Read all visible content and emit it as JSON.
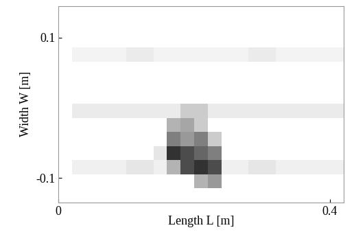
{
  "chart_data": {
    "type": "heatmap",
    "x_label": "Length L [m]",
    "y_label": "Width W [m]",
    "xlim": [
      0,
      0.42
    ],
    "ylim": [
      -0.135,
      0.145
    ],
    "xticks": [
      0,
      0.4
    ],
    "yticks": [
      -0.1,
      0.1
    ],
    "value_range": [
      0,
      1
    ],
    "color": "gray_r",
    "cells": [
      [
        0,
        0,
        0,
        0,
        0,
        0,
        0,
        0,
        0,
        0,
        0,
        0,
        0,
        0,
        0,
        0,
        0,
        0,
        0,
        0,
        0
      ],
      [
        0,
        0,
        0,
        0,
        0,
        0,
        0,
        0,
        0,
        0,
        0,
        0,
        0,
        0,
        0,
        0,
        0,
        0,
        0,
        0,
        0
      ],
      [
        0,
        0,
        0,
        0,
        0,
        0,
        0,
        0,
        0,
        0,
        0,
        0,
        0,
        0,
        0,
        0,
        0,
        0,
        0,
        0,
        0
      ],
      [
        0,
        0.05,
        0.05,
        0.05,
        0.05,
        0.08,
        0.08,
        0.05,
        0.05,
        0.05,
        0.05,
        0.05,
        0.05,
        0.05,
        0.08,
        0.08,
        0.05,
        0.05,
        0.05,
        0.05,
        0.05
      ],
      [
        0,
        0,
        0,
        0,
        0,
        0,
        0,
        0,
        0,
        0,
        0,
        0,
        0,
        0,
        0,
        0,
        0,
        0,
        0,
        0,
        0
      ],
      [
        0,
        0,
        0,
        0,
        0,
        0,
        0,
        0,
        0,
        0,
        0,
        0,
        0,
        0,
        0,
        0,
        0,
        0,
        0,
        0,
        0
      ],
      [
        0,
        0,
        0,
        0,
        0,
        0,
        0,
        0,
        0,
        0,
        0,
        0,
        0,
        0,
        0,
        0,
        0,
        0,
        0,
        0,
        0
      ],
      [
        0,
        0.08,
        0.08,
        0.08,
        0.08,
        0.08,
        0.08,
        0.08,
        0.08,
        0.2,
        0.2,
        0.08,
        0.08,
        0.08,
        0.08,
        0.08,
        0.08,
        0.08,
        0.08,
        0.08,
        0.08
      ],
      [
        0,
        0,
        0,
        0,
        0,
        0,
        0,
        0,
        0.3,
        0.35,
        0.2,
        0,
        0,
        0,
        0,
        0,
        0,
        0,
        0,
        0,
        0
      ],
      [
        0,
        0,
        0,
        0,
        0,
        0,
        0,
        0,
        0.5,
        0.4,
        0.5,
        0.2,
        0,
        0,
        0,
        0,
        0,
        0,
        0,
        0,
        0
      ],
      [
        0,
        0,
        0,
        0,
        0,
        0,
        0,
        0.1,
        0.8,
        0.7,
        0.6,
        0.5,
        0,
        0,
        0,
        0,
        0,
        0,
        0,
        0,
        0
      ],
      [
        0,
        0.06,
        0.06,
        0.06,
        0.06,
        0.1,
        0.1,
        0.06,
        0.3,
        0.7,
        0.8,
        0.7,
        0.06,
        0.06,
        0.1,
        0.1,
        0.06,
        0.06,
        0.06,
        0.06,
        0.06
      ],
      [
        0,
        0,
        0,
        0,
        0,
        0,
        0,
        0,
        0,
        0,
        0.3,
        0.4,
        0,
        0,
        0,
        0,
        0,
        0,
        0,
        0,
        0
      ],
      [
        0,
        0,
        0,
        0,
        0,
        0,
        0,
        0,
        0,
        0,
        0,
        0,
        0,
        0,
        0,
        0,
        0,
        0,
        0,
        0,
        0
      ]
    ]
  }
}
